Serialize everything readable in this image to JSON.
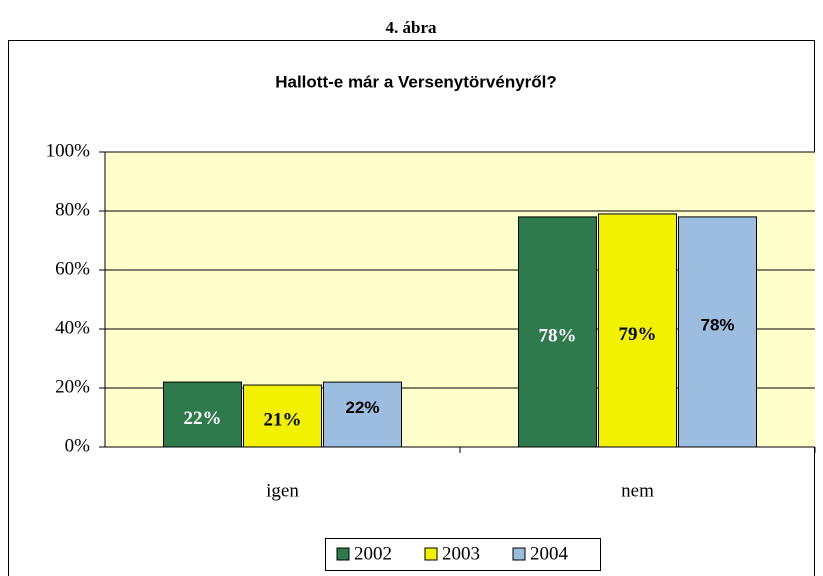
{
  "chart_data": {
    "type": "bar",
    "header": "4. ábra",
    "title": "Hallott-e már a Versenytörvényről?",
    "categories": [
      "igen",
      "nem"
    ],
    "series": [
      {
        "name": "2002",
        "color": "#2f7a4c",
        "values": [
          22,
          78
        ],
        "value_labels": [
          "22%",
          "78%"
        ]
      },
      {
        "name": "2003",
        "color": "#f2f200",
        "values": [
          21,
          79
        ],
        "value_labels": [
          "21%",
          "79%"
        ]
      },
      {
        "name": "2004",
        "color": "#9dbde0",
        "values": [
          22,
          78
        ],
        "value_labels": [
          "22%",
          "78%"
        ]
      }
    ],
    "ylim": [
      0,
      100
    ],
    "yticks": [
      {
        "value": 0,
        "label": "0%"
      },
      {
        "value": 20,
        "label": "20%"
      },
      {
        "value": 40,
        "label": "40%"
      },
      {
        "value": 60,
        "label": "60%"
      },
      {
        "value": 80,
        "label": "80%"
      },
      {
        "value": 100,
        "label": "100%"
      }
    ],
    "grid": true,
    "legend": "bottom"
  }
}
